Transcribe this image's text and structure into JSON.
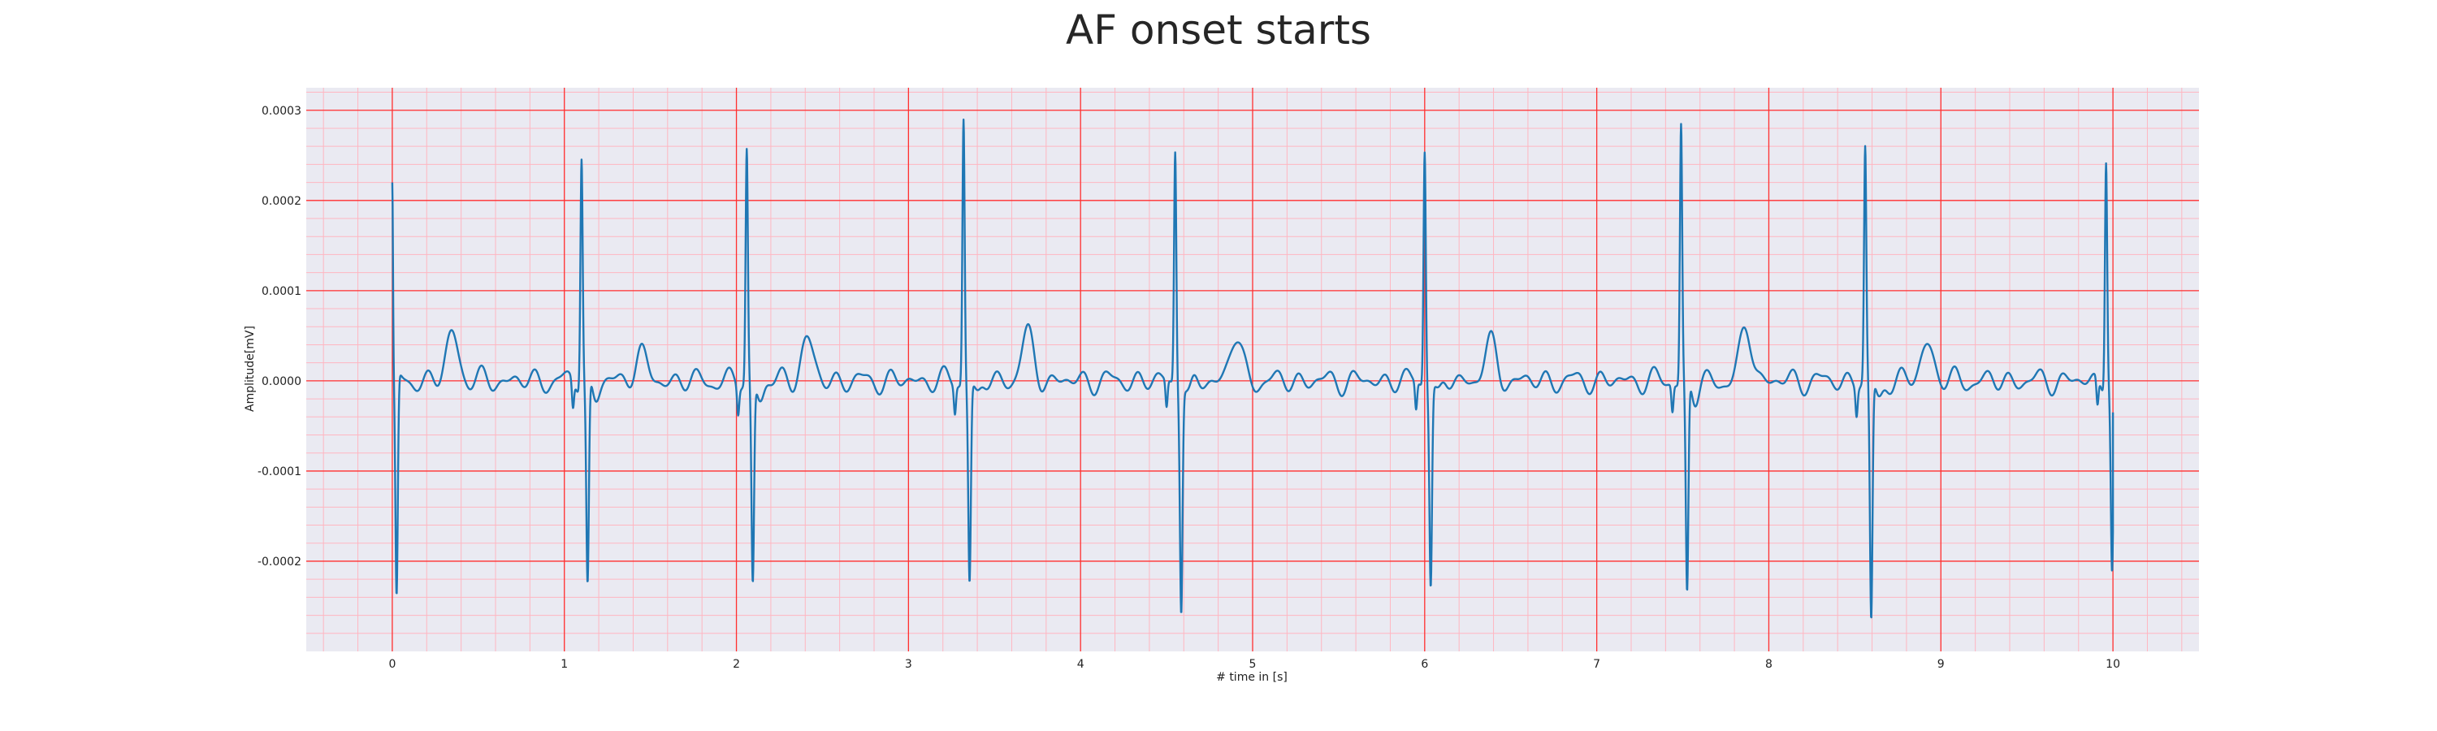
{
  "chart_data": {
    "type": "line",
    "title": "AF onset starts",
    "xlabel": "# time in [s]",
    "ylabel": "Amplitude[mV]",
    "xlim": [
      -0.5,
      10.5
    ],
    "ylim": [
      -0.0003,
      0.000325
    ],
    "xticks": [
      0,
      1,
      2,
      3,
      4,
      5,
      6,
      7,
      8,
      9,
      10
    ],
    "xtick_labels": [
      "0",
      "1",
      "2",
      "3",
      "4",
      "5",
      "6",
      "7",
      "8",
      "9",
      "10"
    ],
    "yticks": [
      0.0003,
      0.0002,
      0.0001,
      0.0,
      -0.0001,
      -0.0002
    ],
    "ytick_labels": [
      "0.0003",
      "0.0002",
      "0.0001",
      "0.0000",
      "-0.0001",
      "-0.0002"
    ],
    "grid": true,
    "grid_major_color": "#ff3030",
    "grid_minor_color": "#ffb6c1",
    "background_color": "#eaeaf2",
    "series": [
      {
        "color": "#1f77b4",
        "qrs_beats": [
          {
            "t": 1.1,
            "peak": 0.000255,
            "trough": -0.00023
          },
          {
            "t": 2.06,
            "peak": 0.000255,
            "trough": -0.000225
          },
          {
            "t": 3.32,
            "peak": 0.000295,
            "trough": -0.00022
          },
          {
            "t": 4.55,
            "peak": 0.00026,
            "trough": -0.000245
          },
          {
            "t": 6.0,
            "peak": 0.000262,
            "trough": -0.00022
          },
          {
            "t": 7.49,
            "peak": 0.000285,
            "trough": -0.00024
          },
          {
            "t": 8.56,
            "peak": 0.000255,
            "trough": -0.00027
          },
          {
            "t": 9.96,
            "peak": 0.000255,
            "trough": -0.000215
          }
        ],
        "t_waves": [
          {
            "t": 0.35,
            "amp": 5.2e-05
          },
          {
            "t": 1.44,
            "amp": 3e-05
          },
          {
            "t": 2.41,
            "amp": 4.5e-05
          },
          {
            "t": 3.69,
            "amp": 5e-05
          },
          {
            "t": 4.9,
            "amp": 4.8e-05
          },
          {
            "t": 6.38,
            "amp": 4e-05
          },
          {
            "t": 7.87,
            "amp": 5.7e-05
          },
          {
            "t": 8.92,
            "amp": 4.2e-05
          }
        ],
        "start_value": 0.000213,
        "start_trough": -0.00025,
        "end_value": -3.5e-05
      }
    ]
  }
}
